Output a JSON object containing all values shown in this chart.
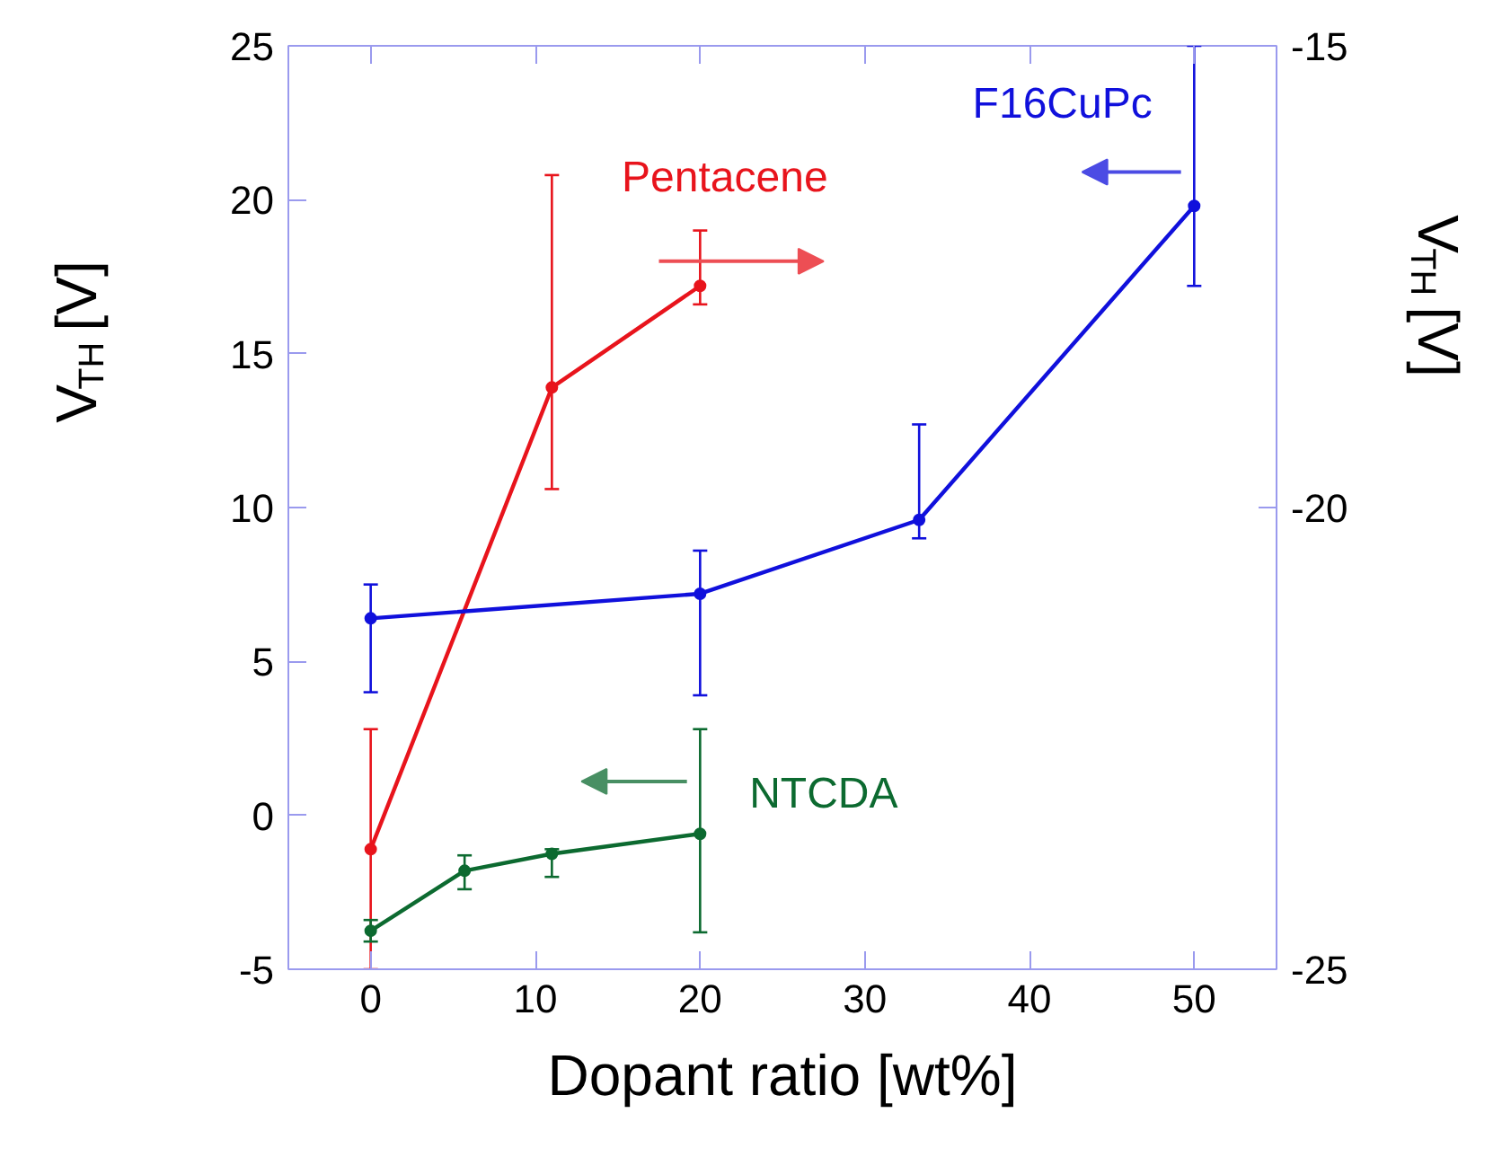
{
  "chart_data": {
    "type": "line",
    "xlabel": "Dopant ratio [wt%]",
    "ylabel": "V$_{TH}$ [V]",
    "y2label": "V$_{TH}$ [V]",
    "xlim": [
      -5,
      55
    ],
    "xticks": [
      0,
      10,
      20,
      30,
      40,
      50
    ],
    "ylim": [
      -5,
      25
    ],
    "yticks": [
      -5,
      0,
      5,
      10,
      15,
      20,
      25
    ],
    "y2lim": [
      -25,
      -15
    ],
    "y2ticks": [
      -25,
      -20,
      -15
    ],
    "grid": false,
    "marker": "circle",
    "line_style": "solid",
    "series": [
      {
        "name": "Pentacene",
        "color": "#e8141c",
        "axis": "y2",
        "x": [
          0,
          11,
          20
        ],
        "values": [
          -23.7,
          -18.7,
          -17.6
        ],
        "errors": [
          [
            -25,
            -22.4
          ],
          [
            -19.8,
            -16.4
          ],
          [
            -17.8,
            -17.0
          ]
        ]
      },
      {
        "name": "F16CuPc",
        "color": "#1010dc",
        "x": [
          0,
          20,
          33.3,
          50
        ],
        "values": [
          6.4,
          7.2,
          9.6,
          19.8
        ],
        "errors": [
          [
            4.0,
            7.5
          ],
          [
            3.9,
            8.6
          ],
          [
            9.0,
            12.7
          ],
          [
            17.2,
            25
          ]
        ]
      },
      {
        "name": "NTCDA",
        "color": "#0c6a30",
        "x": [
          0,
          5.7,
          11,
          20
        ],
        "values": [
          -3.75,
          -1.8,
          -1.25,
          -0.6
        ],
        "errors": [
          0.35,
          [
            -2.4,
            -1.3
          ],
          [
            -2.0,
            -1.1
          ],
          [
            -3.8,
            2.8
          ]
        ]
      }
    ]
  }
}
